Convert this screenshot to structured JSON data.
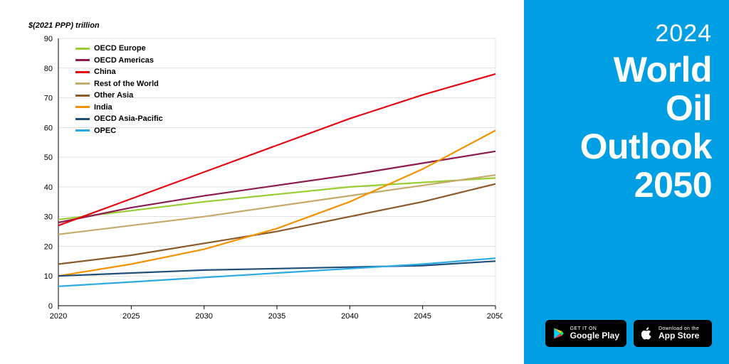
{
  "sidebar": {
    "background_color": "#009fe3",
    "year": "2024",
    "title_lines": [
      "World",
      "Oil",
      "Outlook",
      "2050"
    ],
    "title_fontsize": 50,
    "year_fontsize": 34,
    "stores": {
      "google": {
        "small": "GET IT ON",
        "big": "Google Play"
      },
      "apple": {
        "small": "Download on the",
        "big": "App Store"
      }
    }
  },
  "chart": {
    "type": "line",
    "y_axis_label": "$(2021 PPP) trillion",
    "label_fontsize": 11,
    "background_color": "#ffffff",
    "grid_color": "#cfcfcf",
    "line_width": 2.2,
    "x": {
      "min": 2020,
      "max": 2050,
      "tick_step": 5,
      "ticks": [
        2020,
        2025,
        2030,
        2035,
        2040,
        2045,
        2050
      ]
    },
    "y": {
      "min": 0,
      "max": 90,
      "tick_step": 10,
      "ticks": [
        0,
        10,
        20,
        30,
        40,
        50,
        60,
        70,
        80,
        90
      ]
    },
    "series": [
      {
        "name": "OECD Europe",
        "color": "#9acd32",
        "x": [
          2020,
          2025,
          2030,
          2035,
          2040,
          2045,
          2050
        ],
        "y": [
          29,
          32,
          35,
          37.5,
          40,
          41.5,
          43
        ]
      },
      {
        "name": "OECD Americas",
        "color": "#8b1a4f",
        "x": [
          2020,
          2025,
          2030,
          2035,
          2040,
          2045,
          2050
        ],
        "y": [
          28,
          33,
          37,
          40.5,
          44,
          48,
          52
        ]
      },
      {
        "name": "China",
        "color": "#e30613",
        "x": [
          2020,
          2025,
          2030,
          2035,
          2040,
          2045,
          2050
        ],
        "y": [
          27,
          36,
          45,
          54,
          63,
          71,
          78
        ]
      },
      {
        "name": "Rest of the World",
        "color": "#c6aa6a",
        "x": [
          2020,
          2025,
          2030,
          2035,
          2040,
          2045,
          2050
        ],
        "y": [
          24,
          27,
          30,
          33.5,
          37,
          40.5,
          44
        ]
      },
      {
        "name": "Other Asia",
        "color": "#8b5a2b",
        "x": [
          2020,
          2025,
          2030,
          2035,
          2040,
          2045,
          2050
        ],
        "y": [
          14,
          17,
          21,
          25,
          30,
          35,
          41
        ]
      },
      {
        "name": "India",
        "color": "#f39200",
        "x": [
          2020,
          2025,
          2030,
          2035,
          2040,
          2045,
          2050
        ],
        "y": [
          10,
          14,
          19,
          26,
          35,
          46,
          59
        ]
      },
      {
        "name": "OECD Asia-Pacific",
        "color": "#1f4e79",
        "x": [
          2020,
          2025,
          2030,
          2035,
          2040,
          2045,
          2050
        ],
        "y": [
          10,
          11,
          12,
          12.5,
          13,
          13.5,
          15
        ]
      },
      {
        "name": "OPEC",
        "color": "#29abe2",
        "x": [
          2020,
          2025,
          2030,
          2035,
          2040,
          2045,
          2050
        ],
        "y": [
          6.5,
          8,
          9.5,
          11,
          12.5,
          14,
          16
        ]
      }
    ]
  }
}
